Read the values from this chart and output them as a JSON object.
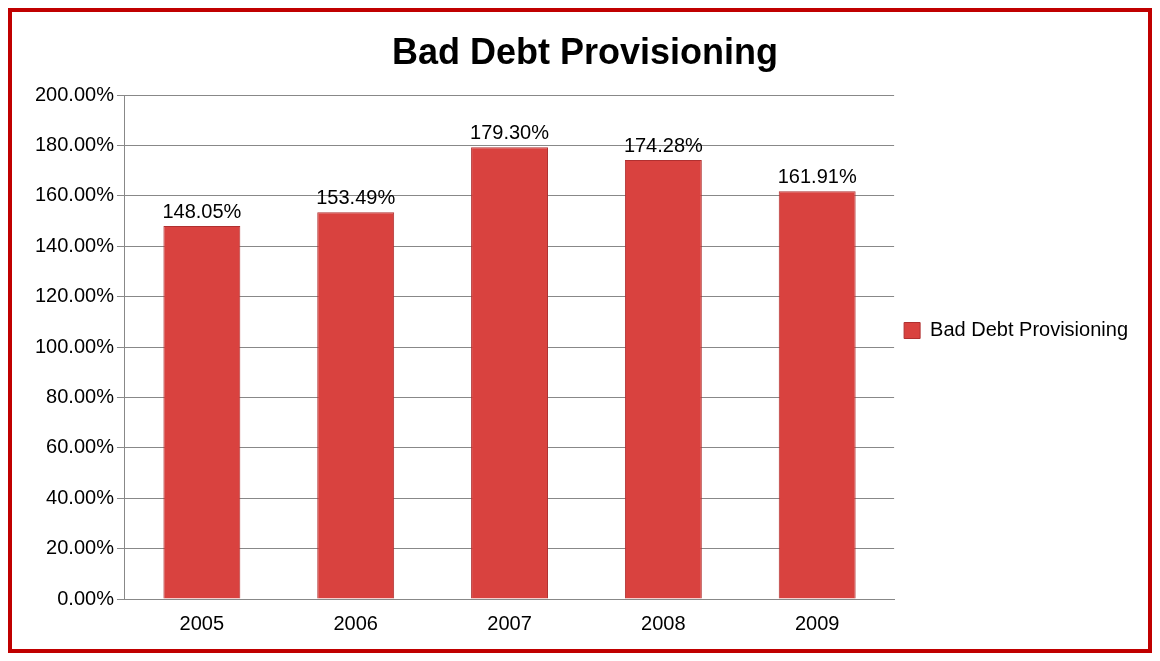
{
  "chart_data": {
    "type": "bar",
    "title": "Bad Debt Provisioning",
    "categories": [
      "2005",
      "2006",
      "2007",
      "2008",
      "2009"
    ],
    "series": [
      {
        "name": "Bad Debt Provisioning",
        "color": "#d9423f",
        "values": [
          148.05,
          153.49,
          179.3,
          174.28,
          161.91
        ],
        "value_labels": [
          "148.05%",
          "153.49%",
          "179.30%",
          "174.28%",
          "161.91%"
        ]
      }
    ],
    "ylim": [
      0,
      200
    ],
    "yticks": [
      {
        "value": 0,
        "label": "0.00%"
      },
      {
        "value": 20,
        "label": "20.00%"
      },
      {
        "value": 40,
        "label": "40.00%"
      },
      {
        "value": 60,
        "label": "60.00%"
      },
      {
        "value": 80,
        "label": "80.00%"
      },
      {
        "value": 100,
        "label": "100.00%"
      },
      {
        "value": 120,
        "label": "120.00%"
      },
      {
        "value": 140,
        "label": "140.00%"
      },
      {
        "value": 160,
        "label": "160.00%"
      },
      {
        "value": 180,
        "label": "180.00%"
      },
      {
        "value": 200,
        "label": "200.00%"
      }
    ],
    "grid": "y",
    "legend": "right"
  }
}
